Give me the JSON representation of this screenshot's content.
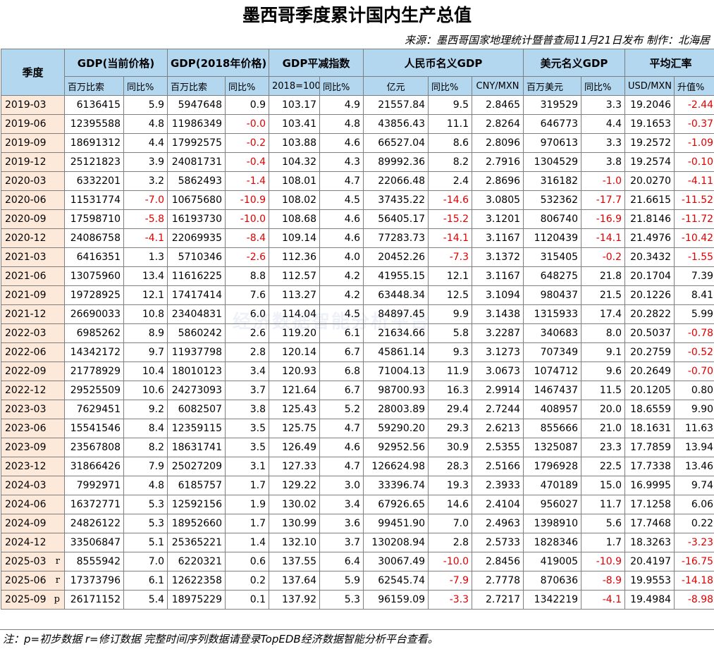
{
  "title": "墨西哥季度累计国内生产总值",
  "source": "来源：墨西哥国家地理统计暨普查局11月21日发布 制作：北海居",
  "watermark": "经济数据智能分析平台",
  "footnote": "注：p=初步数据 r=修订数据 完整时间序列数据请登录TopEDB经济数据智能分析平台查看。",
  "header": {
    "quarter": "季度",
    "groups": [
      "GDP(当前价格)",
      "GDP(2018年价格)",
      "GDP平减指数",
      "人民币名义GDP",
      "美元名义GDP",
      "平均汇率"
    ],
    "subs": [
      "百万比索",
      "同比%",
      "百万比索",
      "同比%",
      "2018=100",
      "同比%",
      "亿元",
      "同比%",
      "CNY/MXN",
      "百万美元",
      "同比%",
      "USD/MXN",
      "升值%"
    ]
  },
  "rows": [
    {
      "q": "2019-03",
      "m": "",
      "v": [
        "6136415",
        "5.9",
        "5947648",
        "0.9",
        "103.17",
        "4.9",
        "21557.84",
        "9.5",
        "2.8465",
        "319529",
        "3.3",
        "19.2046",
        "-2.44"
      ]
    },
    {
      "q": "2019-06",
      "m": "",
      "v": [
        "12395588",
        "4.8",
        "11986349",
        "-0.0",
        "103.41",
        "4.8",
        "43856.43",
        "11.1",
        "2.8264",
        "646773",
        "4.4",
        "19.1653",
        "-0.37"
      ]
    },
    {
      "q": "2019-09",
      "m": "",
      "v": [
        "18691312",
        "4.4",
        "17992575",
        "-0.2",
        "103.88",
        "4.6",
        "66527.04",
        "8.6",
        "2.8096",
        "970613",
        "3.3",
        "19.2572",
        "-1.09"
      ]
    },
    {
      "q": "2019-12",
      "m": "",
      "v": [
        "25121823",
        "3.9",
        "24081731",
        "-0.4",
        "104.32",
        "4.3",
        "89992.36",
        "8.2",
        "2.7916",
        "1304529",
        "3.8",
        "19.2574",
        "-0.10"
      ]
    },
    {
      "q": "2020-03",
      "m": "",
      "v": [
        "6332201",
        "3.2",
        "5862493",
        "-1.4",
        "108.01",
        "4.7",
        "22066.48",
        "2.4",
        "2.8696",
        "316182",
        "-1.0",
        "20.0270",
        "-4.11"
      ]
    },
    {
      "q": "2020-06",
      "m": "",
      "v": [
        "11531774",
        "-7.0",
        "10675680",
        "-10.9",
        "108.02",
        "4.5",
        "37435.22",
        "-14.6",
        "3.0805",
        "532362",
        "-17.7",
        "21.6615",
        "-11.52"
      ]
    },
    {
      "q": "2020-09",
      "m": "",
      "v": [
        "17598710",
        "-5.8",
        "16193730",
        "-10.0",
        "108.68",
        "4.6",
        "56405.17",
        "-15.2",
        "3.1201",
        "806740",
        "-16.9",
        "21.8146",
        "-11.72"
      ]
    },
    {
      "q": "2020-12",
      "m": "",
      "v": [
        "24086758",
        "-4.1",
        "22069935",
        "-8.4",
        "109.14",
        "4.6",
        "77283.73",
        "-14.1",
        "3.1167",
        "1120439",
        "-14.1",
        "21.4976",
        "-10.42"
      ]
    },
    {
      "q": "2021-03",
      "m": "",
      "v": [
        "6416351",
        "1.3",
        "5710346",
        "-2.6",
        "112.36",
        "4.0",
        "20452.26",
        "-7.3",
        "3.1372",
        "315405",
        "-0.2",
        "20.3432",
        "-1.55"
      ]
    },
    {
      "q": "2021-06",
      "m": "",
      "v": [
        "13075960",
        "13.4",
        "11616225",
        "8.8",
        "112.57",
        "4.2",
        "41955.15",
        "12.1",
        "3.1167",
        "648275",
        "21.8",
        "20.1704",
        "7.39"
      ]
    },
    {
      "q": "2021-09",
      "m": "",
      "v": [
        "19728925",
        "12.1",
        "17417414",
        "7.6",
        "113.27",
        "4.2",
        "63448.34",
        "12.5",
        "3.1094",
        "980437",
        "21.5",
        "20.1226",
        "8.41"
      ]
    },
    {
      "q": "2021-12",
      "m": "",
      "v": [
        "26690033",
        "10.8",
        "23404831",
        "6.0",
        "114.04",
        "4.5",
        "84897.45",
        "9.9",
        "3.1438",
        "1315933",
        "17.4",
        "20.2822",
        "5.99"
      ]
    },
    {
      "q": "2022-03",
      "m": "",
      "v": [
        "6985262",
        "8.9",
        "5860242",
        "2.6",
        "119.20",
        "6.1",
        "21634.66",
        "5.8",
        "3.2287",
        "340683",
        "8.0",
        "20.5037",
        "-0.78"
      ]
    },
    {
      "q": "2022-06",
      "m": "",
      "v": [
        "14342172",
        "9.7",
        "11937798",
        "2.8",
        "120.14",
        "6.7",
        "45861.14",
        "9.3",
        "3.1273",
        "707349",
        "9.1",
        "20.2759",
        "-0.52"
      ]
    },
    {
      "q": "2022-09",
      "m": "",
      "v": [
        "21778929",
        "10.4",
        "18010123",
        "3.4",
        "120.93",
        "6.8",
        "71004.13",
        "11.9",
        "3.0673",
        "1074712",
        "9.6",
        "20.2649",
        "-0.70"
      ]
    },
    {
      "q": "2022-12",
      "m": "",
      "v": [
        "29525509",
        "10.6",
        "24273093",
        "3.7",
        "121.64",
        "6.7",
        "98700.93",
        "16.3",
        "2.9914",
        "1467437",
        "11.5",
        "20.1205",
        "0.80"
      ]
    },
    {
      "q": "2023-03",
      "m": "",
      "v": [
        "7629451",
        "9.2",
        "6082507",
        "3.8",
        "125.43",
        "5.2",
        "28003.89",
        "29.4",
        "2.7244",
        "408957",
        "20.0",
        "18.6559",
        "9.90"
      ]
    },
    {
      "q": "2023-06",
      "m": "",
      "v": [
        "15541546",
        "8.4",
        "12359115",
        "3.5",
        "125.75",
        "4.7",
        "59290.20",
        "29.3",
        "2.6213",
        "855666",
        "21.0",
        "18.1631",
        "11.63"
      ]
    },
    {
      "q": "2023-09",
      "m": "",
      "v": [
        "23567808",
        "8.2",
        "18631741",
        "3.5",
        "126.49",
        "4.6",
        "92952.56",
        "30.9",
        "2.5355",
        "1325087",
        "23.3",
        "17.7859",
        "13.94"
      ]
    },
    {
      "q": "2023-12",
      "m": "",
      "v": [
        "31866426",
        "7.9",
        "25027209",
        "3.1",
        "127.33",
        "4.7",
        "126624.98",
        "28.3",
        "2.5166",
        "1796928",
        "22.5",
        "17.7338",
        "13.46"
      ]
    },
    {
      "q": "2024-03",
      "m": "",
      "v": [
        "7992971",
        "4.8",
        "6185757",
        "1.7",
        "129.22",
        "3.0",
        "33396.74",
        "19.3",
        "2.3933",
        "470189",
        "15.0",
        "16.9995",
        "9.74"
      ]
    },
    {
      "q": "2024-06",
      "m": "",
      "v": [
        "16372771",
        "5.3",
        "12592156",
        "1.9",
        "130.02",
        "3.4",
        "67926.65",
        "14.6",
        "2.4104",
        "956027",
        "11.7",
        "17.1258",
        "6.06"
      ]
    },
    {
      "q": "2024-09",
      "m": "",
      "v": [
        "24826122",
        "5.3",
        "18952660",
        "1.7",
        "130.99",
        "3.6",
        "99451.90",
        "7.0",
        "2.4963",
        "1398910",
        "5.6",
        "17.7468",
        "0.22"
      ]
    },
    {
      "q": "2024-12",
      "m": "",
      "v": [
        "33506847",
        "5.1",
        "25365221",
        "1.4",
        "132.10",
        "3.7",
        "130208.94",
        "2.8",
        "2.5733",
        "1828346",
        "1.7",
        "18.3263",
        "-3.23"
      ]
    },
    {
      "q": "2025-03",
      "m": "r",
      "v": [
        "8555942",
        "7.0",
        "6220321",
        "0.6",
        "137.55",
        "6.4",
        "30067.49",
        "-10.0",
        "2.8456",
        "419005",
        "-10.9",
        "20.4197",
        "-16.75"
      ]
    },
    {
      "q": "2025-06",
      "m": "r",
      "v": [
        "17373796",
        "6.1",
        "12622358",
        "0.2",
        "137.64",
        "5.9",
        "62545.74",
        "-7.9",
        "2.7778",
        "870636",
        "-8.9",
        "19.9553",
        "-14.18"
      ]
    },
    {
      "q": "2025-09",
      "m": "p",
      "v": [
        "26171152",
        "5.4",
        "18975229",
        "0.1",
        "137.92",
        "5.3",
        "96159.09",
        "-3.3",
        "2.7217",
        "1342219",
        "-4.1",
        "19.4984",
        "-8.98"
      ]
    }
  ]
}
